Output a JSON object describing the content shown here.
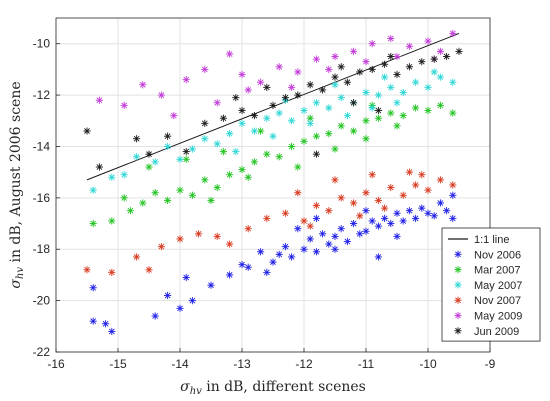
{
  "chart_data": {
    "type": "scatter",
    "title": "",
    "xlabel": {
      "sym": "σ",
      "sub": "hv",
      "rest": " in dB, different scenes"
    },
    "ylabel": {
      "sym": "σ",
      "sub": "hv",
      "rest": " in dB, August 2006 scene"
    },
    "xlim": [
      -16,
      -9
    ],
    "ylim": [
      -22,
      -9
    ],
    "xticks": [
      -16,
      -15,
      -14,
      -13,
      -12,
      -11,
      -10,
      -9
    ],
    "yticks": [
      -22,
      -20,
      -18,
      -16,
      -14,
      -12,
      -10
    ],
    "grid": true,
    "legend_position": "bottom-right",
    "marker": "asterisk",
    "reference_line": {
      "label": "1:1 line",
      "color": "#1a1a1a",
      "points": [
        [
          -15.5,
          -15.3
        ],
        [
          -9.5,
          -9.6
        ]
      ]
    },
    "series": [
      {
        "name": "Nov 2006",
        "color": "#1f1fe6",
        "points": [
          [
            -15.4,
            -20.8
          ],
          [
            -15.4,
            -19.5
          ],
          [
            -15.1,
            -21.2
          ],
          [
            -15.2,
            -20.9
          ],
          [
            -14.4,
            -20.6
          ],
          [
            -14.2,
            -19.8
          ],
          [
            -14.0,
            -20.3
          ],
          [
            -13.9,
            -19.1
          ],
          [
            -13.8,
            -20.0
          ],
          [
            -13.5,
            -19.4
          ],
          [
            -13.2,
            -19.0
          ],
          [
            -13.0,
            -18.6
          ],
          [
            -12.9,
            -18.7
          ],
          [
            -12.7,
            -18.1
          ],
          [
            -12.5,
            -18.5
          ],
          [
            -12.4,
            -18.2
          ],
          [
            -12.3,
            -17.9
          ],
          [
            -12.2,
            -18.3
          ],
          [
            -12.0,
            -18.0
          ],
          [
            -11.9,
            -17.6
          ],
          [
            -11.8,
            -18.1
          ],
          [
            -11.7,
            -17.4
          ],
          [
            -11.6,
            -17.8
          ],
          [
            -11.5,
            -17.5
          ],
          [
            -11.4,
            -17.2
          ],
          [
            -11.3,
            -17.7
          ],
          [
            -11.2,
            -17.0
          ],
          [
            -11.1,
            -17.4
          ],
          [
            -11.0,
            -17.3
          ],
          [
            -10.9,
            -16.9
          ],
          [
            -10.8,
            -17.1
          ],
          [
            -10.7,
            -16.8
          ],
          [
            -10.6,
            -17.0
          ],
          [
            -10.5,
            -16.6
          ],
          [
            -10.4,
            -16.9
          ],
          [
            -10.3,
            -16.5
          ],
          [
            -10.2,
            -16.8
          ],
          [
            -10.1,
            -16.4
          ],
          [
            -10.0,
            -16.6
          ],
          [
            -9.9,
            -16.7
          ],
          [
            -9.8,
            -16.2
          ],
          [
            -9.7,
            -16.5
          ],
          [
            -9.6,
            -15.9
          ],
          [
            -10.8,
            -18.3
          ],
          [
            -11.5,
            -18.0
          ],
          [
            -12.6,
            -18.9
          ],
          [
            -12.1,
            -17.2
          ],
          [
            -11.0,
            -16.5
          ],
          [
            -10.5,
            -17.5
          ],
          [
            -11.8,
            -16.8
          ],
          [
            -9.6,
            -16.8
          ]
        ]
      },
      {
        "name": "Mar 2007",
        "color": "#22c422",
        "points": [
          [
            -15.4,
            -17.0
          ],
          [
            -15.1,
            -16.9
          ],
          [
            -14.9,
            -16.0
          ],
          [
            -14.6,
            -16.2
          ],
          [
            -14.4,
            -15.8
          ],
          [
            -14.2,
            -16.1
          ],
          [
            -14.0,
            -15.7
          ],
          [
            -13.8,
            -15.9
          ],
          [
            -13.6,
            -15.3
          ],
          [
            -13.4,
            -15.6
          ],
          [
            -13.2,
            -15.1
          ],
          [
            -13.0,
            -14.9
          ],
          [
            -12.8,
            -14.6
          ],
          [
            -12.6,
            -14.3
          ],
          [
            -12.4,
            -14.4
          ],
          [
            -12.2,
            -14.0
          ],
          [
            -12.0,
            -13.8
          ],
          [
            -11.8,
            -13.6
          ],
          [
            -11.6,
            -13.5
          ],
          [
            -11.4,
            -13.2
          ],
          [
            -11.2,
            -13.4
          ],
          [
            -11.0,
            -13.0
          ],
          [
            -10.8,
            -12.9
          ],
          [
            -10.6,
            -12.7
          ],
          [
            -10.4,
            -12.8
          ],
          [
            -10.2,
            -12.5
          ],
          [
            -10.0,
            -12.6
          ],
          [
            -9.8,
            -12.4
          ],
          [
            -9.6,
            -12.7
          ],
          [
            -14.5,
            -14.8
          ],
          [
            -13.9,
            -14.5
          ],
          [
            -13.3,
            -14.2
          ],
          [
            -12.9,
            -15.2
          ],
          [
            -12.1,
            -14.8
          ],
          [
            -11.5,
            -14.1
          ],
          [
            -11.0,
            -13.7
          ],
          [
            -10.5,
            -13.2
          ],
          [
            -14.8,
            -16.5
          ],
          [
            -13.5,
            -16.1
          ],
          [
            -12.7,
            -13.4
          ],
          [
            -11.9,
            -12.9
          ],
          [
            -10.9,
            -12.4
          ]
        ]
      },
      {
        "name": "May 2007",
        "color": "#2ed6d6",
        "points": [
          [
            -15.4,
            -15.7
          ],
          [
            -15.1,
            -15.2
          ],
          [
            -14.9,
            -15.1
          ],
          [
            -14.7,
            -14.4
          ],
          [
            -14.4,
            -14.6
          ],
          [
            -14.2,
            -14.0
          ],
          [
            -14.0,
            -14.5
          ],
          [
            -13.8,
            -14.1
          ],
          [
            -13.6,
            -13.7
          ],
          [
            -13.4,
            -13.9
          ],
          [
            -13.2,
            -13.5
          ],
          [
            -13.0,
            -13.1
          ],
          [
            -12.8,
            -13.4
          ],
          [
            -12.6,
            -12.9
          ],
          [
            -12.4,
            -12.7
          ],
          [
            -12.2,
            -13.0
          ],
          [
            -12.0,
            -12.6
          ],
          [
            -11.8,
            -12.3
          ],
          [
            -11.6,
            -12.5
          ],
          [
            -11.4,
            -12.1
          ],
          [
            -11.2,
            -12.3
          ],
          [
            -11.0,
            -11.9
          ],
          [
            -10.8,
            -12.0
          ],
          [
            -10.6,
            -11.7
          ],
          [
            -10.4,
            -11.9
          ],
          [
            -10.2,
            -11.5
          ],
          [
            -10.0,
            -11.7
          ],
          [
            -9.8,
            -11.3
          ],
          [
            -9.6,
            -11.5
          ],
          [
            -12.5,
            -13.6
          ],
          [
            -11.9,
            -13.1
          ],
          [
            -11.3,
            -12.8
          ],
          [
            -10.9,
            -12.5
          ],
          [
            -10.5,
            -12.3
          ],
          [
            -13.1,
            -14.2
          ],
          [
            -12.3,
            -12.2
          ],
          [
            -11.5,
            -11.6
          ],
          [
            -10.7,
            -11.3
          ],
          [
            -9.9,
            -11.1
          ]
        ]
      },
      {
        "name": "Nov 2007",
        "color": "#d83a1f",
        "points": [
          [
            -15.5,
            -18.8
          ],
          [
            -15.1,
            -18.9
          ],
          [
            -14.7,
            -18.3
          ],
          [
            -14.5,
            -18.8
          ],
          [
            -14.3,
            -17.9
          ],
          [
            -14.0,
            -17.6
          ],
          [
            -13.7,
            -17.4
          ],
          [
            -13.4,
            -17.5
          ],
          [
            -13.2,
            -17.8
          ],
          [
            -12.9,
            -17.2
          ],
          [
            -12.6,
            -16.8
          ],
          [
            -12.3,
            -16.6
          ],
          [
            -12.0,
            -16.9
          ],
          [
            -11.8,
            -16.3
          ],
          [
            -11.6,
            -16.5
          ],
          [
            -11.4,
            -16.0
          ],
          [
            -11.2,
            -16.2
          ],
          [
            -11.0,
            -15.8
          ],
          [
            -10.8,
            -16.1
          ],
          [
            -10.6,
            -15.6
          ],
          [
            -10.4,
            -15.9
          ],
          [
            -10.2,
            -15.5
          ],
          [
            -10.0,
            -15.7
          ],
          [
            -9.8,
            -15.3
          ],
          [
            -9.6,
            -15.5
          ],
          [
            -11.5,
            -15.3
          ],
          [
            -10.9,
            -15.1
          ],
          [
            -10.3,
            -15.0
          ],
          [
            -12.1,
            -15.8
          ],
          [
            -11.1,
            -16.7
          ],
          [
            -10.7,
            -16.4
          ],
          [
            -11.9,
            -17.1
          ],
          [
            -10.1,
            -15.1
          ]
        ]
      },
      {
        "name": "May 2009",
        "color": "#c23ad8",
        "points": [
          [
            -15.3,
            -12.2
          ],
          [
            -14.9,
            -12.4
          ],
          [
            -14.6,
            -11.6
          ],
          [
            -14.3,
            -12.0
          ],
          [
            -13.9,
            -11.4
          ],
          [
            -13.6,
            -11.0
          ],
          [
            -13.2,
            -10.4
          ],
          [
            -13.0,
            -11.2
          ],
          [
            -12.7,
            -11.5
          ],
          [
            -12.4,
            -10.9
          ],
          [
            -12.1,
            -11.1
          ],
          [
            -11.8,
            -10.6
          ],
          [
            -11.5,
            -10.5
          ],
          [
            -11.2,
            -10.3
          ],
          [
            -10.9,
            -10.0
          ],
          [
            -10.6,
            -9.8
          ],
          [
            -10.3,
            -10.1
          ],
          [
            -10.0,
            -9.9
          ],
          [
            -9.8,
            -10.3
          ],
          [
            -9.6,
            -9.6
          ],
          [
            -11.0,
            -10.7
          ],
          [
            -11.6,
            -11.0
          ],
          [
            -12.2,
            -11.7
          ],
          [
            -10.5,
            -10.5
          ],
          [
            -12.9,
            -11.8
          ],
          [
            -13.4,
            -12.3
          ],
          [
            -14.1,
            -12.8
          ],
          [
            -9.9,
            -10.6
          ]
        ]
      },
      {
        "name": "Jun 2009",
        "color": "#1a1a1a",
        "points": [
          [
            -15.5,
            -13.4
          ],
          [
            -15.3,
            -14.8
          ],
          [
            -14.7,
            -13.7
          ],
          [
            -14.5,
            -14.3
          ],
          [
            -14.2,
            -13.6
          ],
          [
            -13.9,
            -14.2
          ],
          [
            -13.6,
            -13.1
          ],
          [
            -13.3,
            -12.9
          ],
          [
            -13.0,
            -12.6
          ],
          [
            -12.8,
            -12.8
          ],
          [
            -12.5,
            -12.4
          ],
          [
            -12.3,
            -12.1
          ],
          [
            -12.1,
            -12.0
          ],
          [
            -11.9,
            -11.6
          ],
          [
            -11.7,
            -11.8
          ],
          [
            -11.5,
            -11.3
          ],
          [
            -11.3,
            -11.5
          ],
          [
            -11.1,
            -11.1
          ],
          [
            -10.9,
            -11.0
          ],
          [
            -10.7,
            -10.8
          ],
          [
            -10.5,
            -11.2
          ],
          [
            -10.3,
            -10.9
          ],
          [
            -10.1,
            -10.7
          ],
          [
            -9.9,
            -10.6
          ],
          [
            -9.7,
            -10.5
          ],
          [
            -9.5,
            -10.3
          ],
          [
            -11.2,
            -12.3
          ],
          [
            -10.8,
            -12.6
          ],
          [
            -11.8,
            -14.3
          ],
          [
            -13.1,
            -12.1
          ],
          [
            -12.6,
            -11.7
          ],
          [
            -10.6,
            -10.5
          ],
          [
            -11.4,
            -10.9
          ]
        ]
      }
    ]
  }
}
